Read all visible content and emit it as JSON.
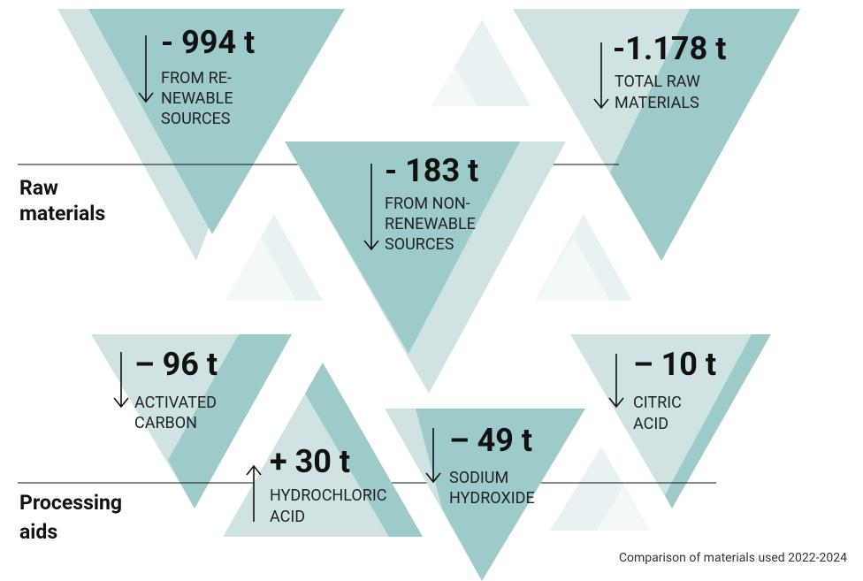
{
  "sections": [
    {
      "lines": [
        "Raw",
        "materials"
      ]
    },
    {
      "lines": [
        "Processing",
        "aids"
      ]
    }
  ],
  "items": [
    {
      "value": "- 994 t",
      "label": [
        "FROM RE-",
        "NEWABLE",
        "SOURCES"
      ]
    },
    {
      "value": "-1.178 t",
      "label": [
        "TOTAL RAW",
        "MATERIALS"
      ]
    },
    {
      "value": "- 183 t",
      "label": [
        "FROM NON-",
        "RENEWABLE",
        "SOURCES"
      ]
    },
    {
      "value": "– 96 t",
      "label": [
        "ACTIVATED",
        "CARBON"
      ]
    },
    {
      "value": "– 10 t",
      "label": [
        "CITRIC",
        "ACID"
      ]
    },
    {
      "value": "+ 30 t",
      "label": [
        "HYDROCHLORIC",
        "ACID"
      ]
    },
    {
      "value": "– 49 t",
      "label": [
        "SODIUM",
        "HYDROXIDE"
      ]
    }
  ],
  "footnote": "Comparison of materials used 2022-2024"
}
